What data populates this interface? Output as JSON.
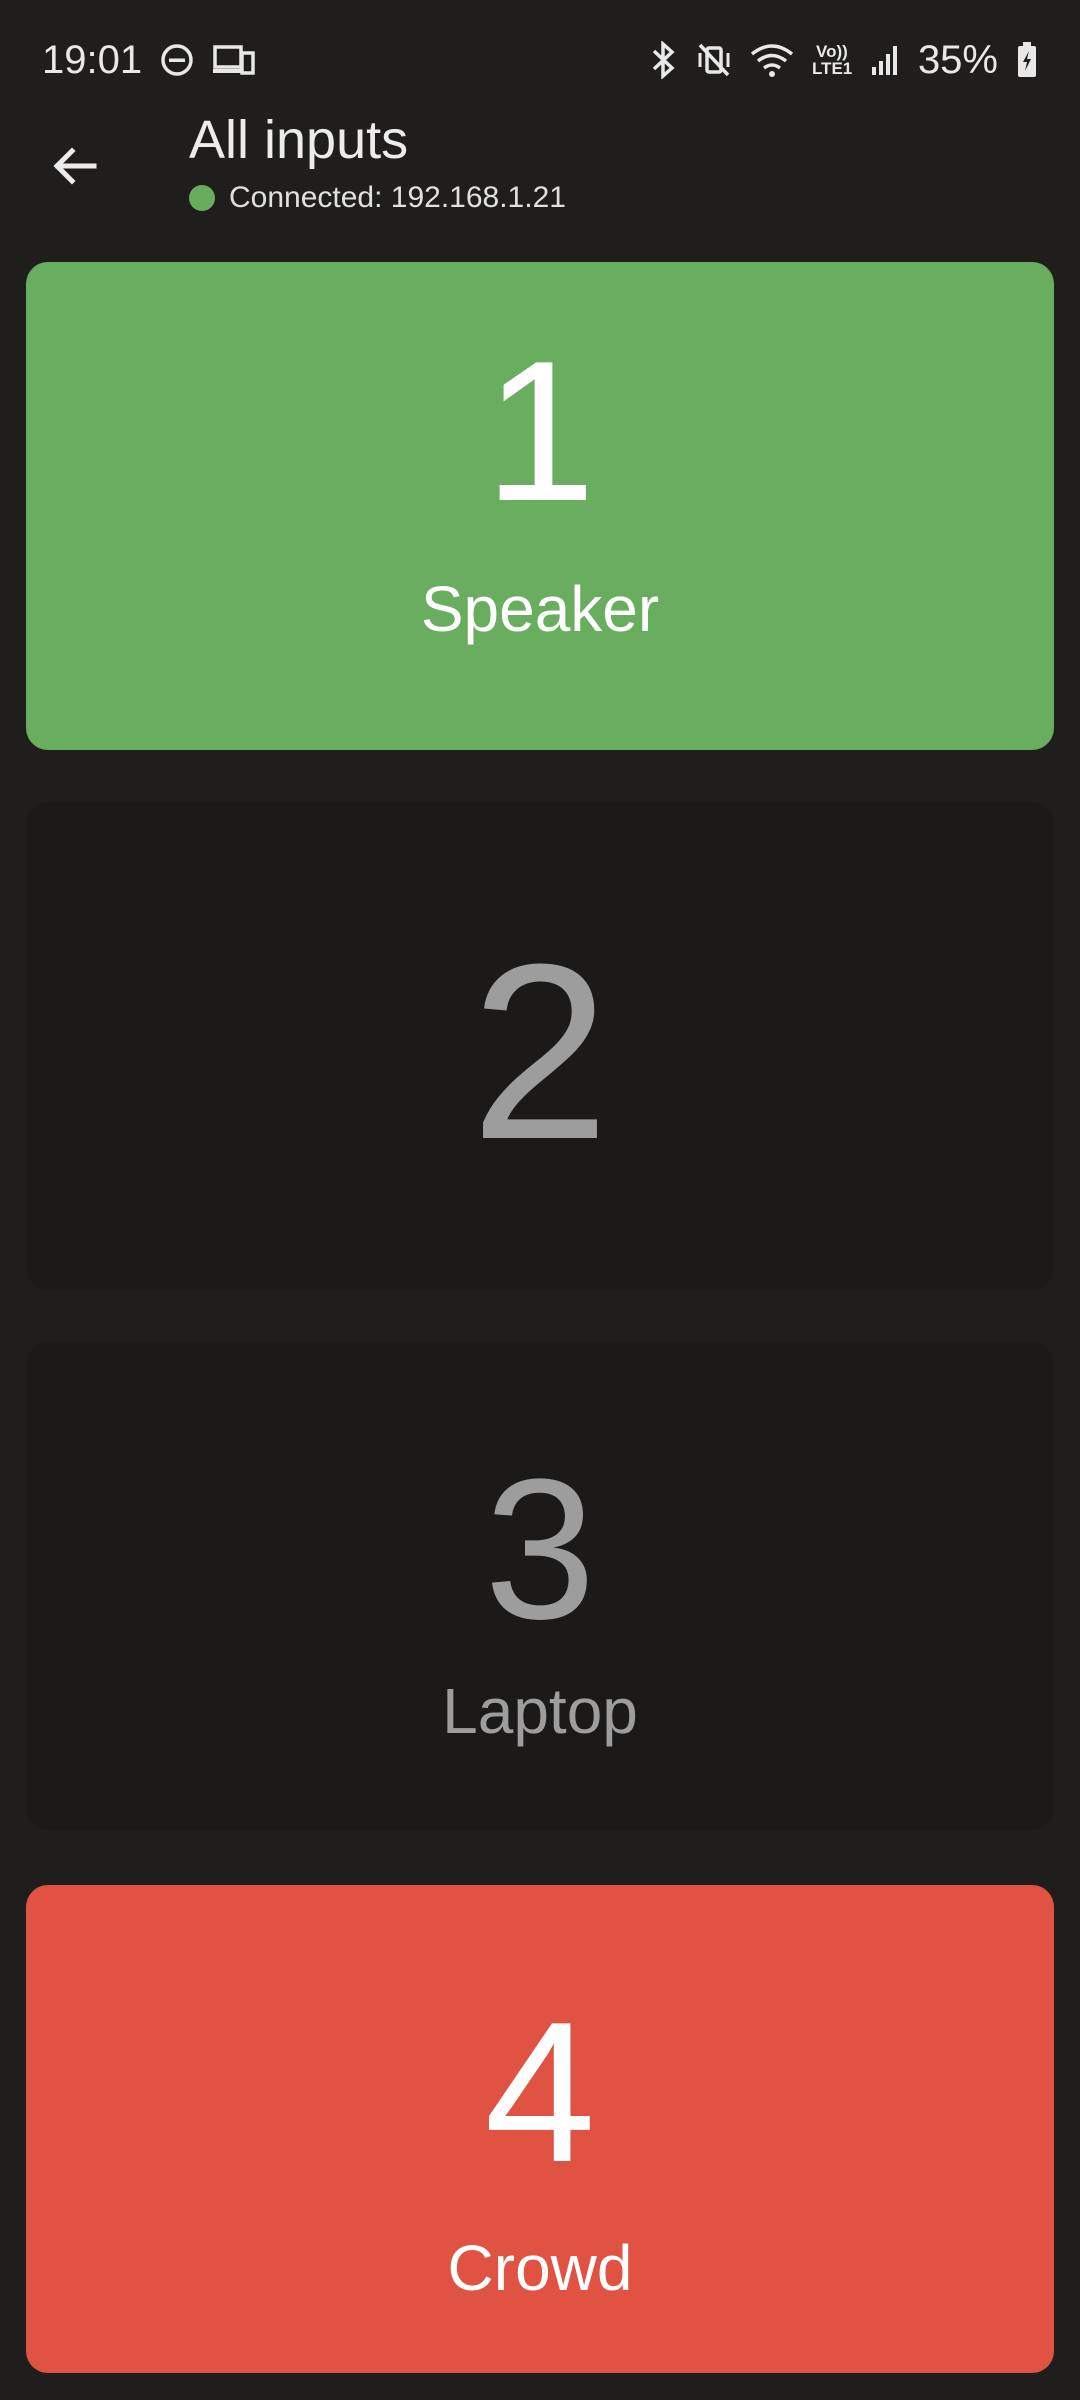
{
  "status_bar": {
    "time": "19:01",
    "battery": "35%",
    "network_label": "Vo)) LTE1"
  },
  "header": {
    "title": "All inputs",
    "connection_status": "Connected: 192.168.1.21",
    "status_color": "#67ad5b"
  },
  "inputs": [
    {
      "number": "1",
      "label": "Speaker",
      "color": "#69ad5e",
      "state": "active"
    },
    {
      "number": "2",
      "label": "",
      "color": "#1b1a18",
      "state": "inactive"
    },
    {
      "number": "3",
      "label": "Laptop",
      "color": "#1b1a18",
      "state": "inactive"
    },
    {
      "number": "4",
      "label": "Crowd",
      "color": "#e05241",
      "state": "muted"
    }
  ],
  "icons": {
    "back": "arrow-back-icon",
    "dnd": "do-not-disturb-icon",
    "devices": "devices-icon",
    "bluetooth": "bluetooth-icon",
    "mute": "vibrate-mute-icon",
    "wifi": "wifi-icon",
    "signal": "signal-icon",
    "battery": "battery-charging-icon"
  }
}
